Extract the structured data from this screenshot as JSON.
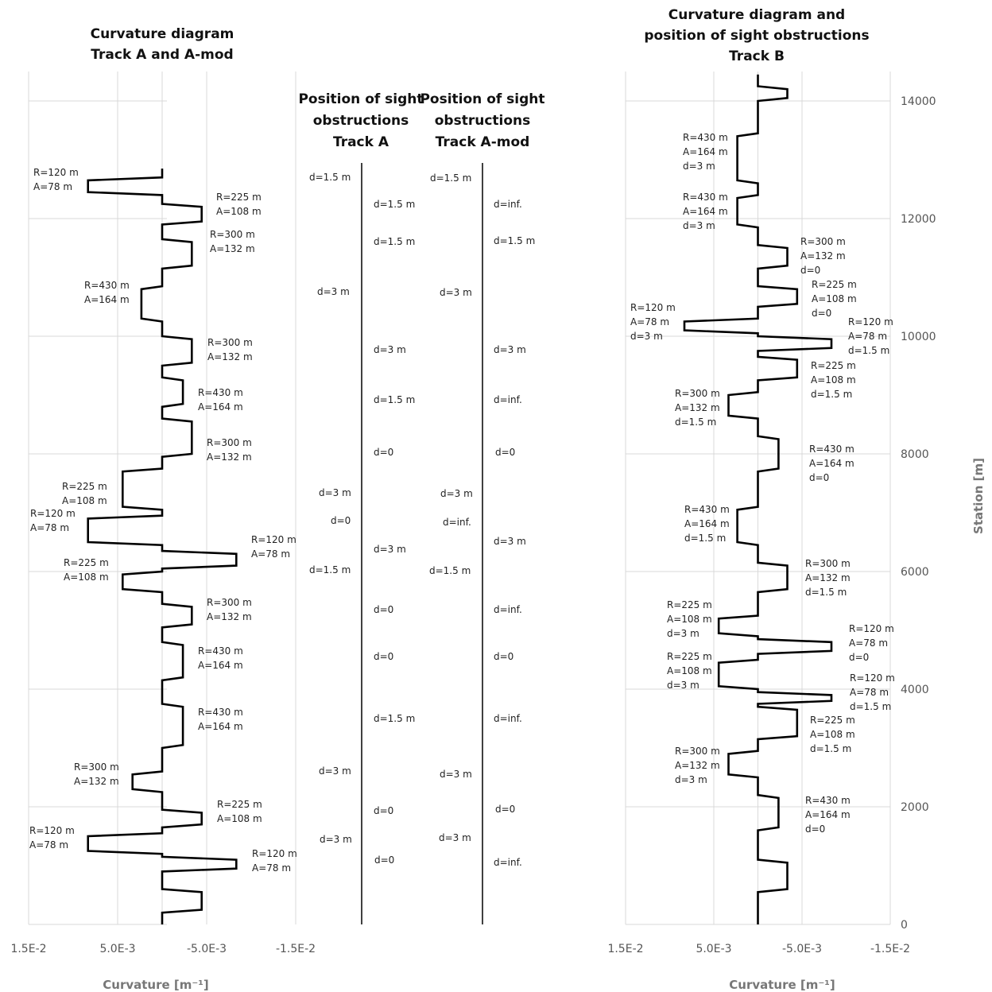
{
  "chart_data": [
    {
      "type": "line",
      "title": [
        "Curvature diagram",
        "Track A and A-mod"
      ],
      "xlabel": "Curvature [m⁻¹]",
      "ylabel": "",
      "x_tick_labels": [
        "1.5E-2",
        "5.0E-3",
        "-5.0E-3",
        "-1.5E-2"
      ],
      "xlim": [
        0.015,
        -0.015
      ],
      "ylim": [
        0,
        14500
      ],
      "grid": true,
      "series": [
        {
          "x": [
            0,
            0,
            0.00833,
            0.00833,
            0,
            0,
            -0.00444,
            -0.00444,
            0,
            0,
            -0.00333,
            -0.00333,
            0,
            0,
            0.00233,
            0.00233,
            0,
            0,
            -0.00333,
            -0.00333,
            0,
            0,
            -0.00233,
            -0.00233,
            0,
            0,
            -0.00333,
            -0.00333,
            0,
            0,
            0.00444,
            0.00444,
            0,
            0,
            0.00833,
            0.00833,
            0,
            0,
            -0.00833,
            -0.00833,
            0,
            0,
            0.00444,
            0.00444,
            0,
            0,
            -0.00333,
            -0.00333,
            0,
            0,
            -0.00233,
            -0.00233,
            0,
            0,
            -0.00233,
            -0.00233,
            0,
            0,
            0.00333,
            0.00333,
            0,
            0,
            -0.00444,
            -0.00444,
            0,
            0,
            0.00833,
            0.00833,
            0,
            0,
            -0.00833,
            -0.00833,
            0,
            0,
            -0.00444,
            -0.00444,
            0,
            0
          ],
          "y": [
            12850,
            12700,
            12650,
            12450,
            12400,
            12250,
            12200,
            11950,
            11900,
            11650,
            11600,
            11200,
            11150,
            10850,
            10800,
            10300,
            10250,
            10000,
            9950,
            9550,
            9500,
            9300,
            9250,
            8850,
            8800,
            8600,
            8550,
            8000,
            7950,
            7750,
            7700,
            7100,
            7050,
            6950,
            6900,
            6500,
            6450,
            6350,
            6300,
            6100,
            6050,
            6000,
            5950,
            5700,
            5650,
            5450,
            5400,
            5100,
            5050,
            4800,
            4750,
            4200,
            4150,
            3750,
            3700,
            3050,
            3000,
            2600,
            2550,
            2300,
            2250,
            1950,
            1900,
            1700,
            1650,
            1550,
            1500,
            1250,
            1200,
            1150,
            1100,
            950,
            900,
            600,
            550,
            250,
            200,
            0
          ]
        }
      ],
      "annotations": [
        "R=120 m",
        "A=78 m",
        "R=225 m",
        "A=108 m",
        "R=300 m",
        "A=132 m",
        "R=430 m",
        "A=164 m",
        "R=300 m",
        "A=132 m",
        "R=430 m",
        "A=164 m",
        "R=300 m",
        "A=132 m",
        "R=225 m",
        "A=108 m",
        "R=120 m",
        "A=78 m",
        "R=120 m",
        "A=78 m",
        "R=225 m",
        "A=108 m",
        "R=300 m",
        "A=132 m",
        "R=430 m",
        "A=164 m",
        "R=430 m",
        "A=164 m",
        "R=300 m",
        "A=132 m",
        "R=225 m",
        "A=108 m",
        "R=120 m",
        "A=78 m",
        "R=120 m",
        "A=78 m"
      ]
    },
    {
      "type": "table",
      "title": [
        "Position of sight",
        "obstructions",
        "Track A"
      ],
      "labels": [
        "d=1.5 m",
        "d=1.5 m",
        "d=1.5 m",
        "d=3 m",
        "d=3 m",
        "d=1.5 m",
        "d=0",
        "d=3 m",
        "d=0",
        "d=3 m",
        "d=1.5 m",
        "d=0",
        "d=0",
        "d=1.5 m",
        "d=3 m",
        "d=0",
        "d=3 m",
        "d=0"
      ]
    },
    {
      "type": "table",
      "title": [
        "Position of sight",
        "obstructions",
        "Track A-mod"
      ],
      "labels": [
        "d=1.5 m",
        "d=inf.",
        "d=1.5 m",
        "d=3 m",
        "d=3 m",
        "d=inf.",
        "d=0",
        "d=3 m",
        "d=inf.",
        "d=3 m",
        "d=1.5 m",
        "d=inf.",
        "d=0",
        "d=inf.",
        "d=3 m",
        "d=0",
        "d=3 m",
        "d=inf."
      ]
    },
    {
      "type": "line",
      "title": [
        "Curvature diagram and",
        "position of sight obstructions",
        "Track B"
      ],
      "xlabel": "Curvature [m⁻¹]",
      "ylabel": "Station [m]",
      "x_tick_labels": [
        "1.5E-2",
        "5.0E-3",
        "-5.0E-3",
        "-1.5E-2"
      ],
      "y_tick_labels": [
        "0",
        "2000",
        "4000",
        "6000",
        "8000",
        "10000",
        "12000",
        "14000"
      ],
      "xlim": [
        0.015,
        -0.015
      ],
      "ylim": [
        0,
        14500
      ],
      "grid": true,
      "series": [
        {
          "x": [
            0,
            0,
            -0.00333,
            -0.00333,
            0,
            0,
            0.00233,
            0.00233,
            0,
            0,
            0.00233,
            0.00233,
            0,
            0,
            -0.00333,
            -0.00333,
            0,
            0,
            -0.00444,
            -0.00444,
            0,
            0,
            0.00833,
            0.00833,
            0,
            0,
            -0.00833,
            -0.00833,
            0,
            0,
            -0.00444,
            -0.00444,
            0,
            0,
            0.00333,
            0.00333,
            0,
            0,
            -0.00233,
            -0.00233,
            0,
            0,
            0.00233,
            0.00233,
            0,
            0,
            -0.00333,
            -0.00333,
            0,
            0,
            0.00444,
            0.00444,
            0,
            0,
            -0.00833,
            -0.00833,
            0,
            0,
            0.00444,
            0.00444,
            0,
            0,
            -0.00833,
            -0.00833,
            0,
            0,
            -0.00444,
            -0.00444,
            0,
            0,
            0.00333,
            0.00333,
            0,
            0,
            -0.00233,
            -0.00233,
            0,
            0,
            -0.00333,
            -0.00333,
            0,
            0
          ],
          "y": [
            14450,
            14250,
            14200,
            14050,
            14000,
            13450,
            13400,
            12650,
            12600,
            12400,
            12350,
            11900,
            11850,
            11550,
            11500,
            11200,
            11150,
            10850,
            10800,
            10550,
            10500,
            10300,
            10250,
            10100,
            10050,
            10000,
            9950,
            9800,
            9750,
            9650,
            9600,
            9300,
            9250,
            9050,
            9000,
            8650,
            8600,
            8300,
            8250,
            7750,
            7700,
            7100,
            7050,
            6500,
            6450,
            6150,
            6100,
            5700,
            5650,
            5250,
            5200,
            4950,
            4900,
            4850,
            4800,
            4650,
            4600,
            4500,
            4450,
            4050,
            4000,
            3950,
            3900,
            3800,
            3750,
            3700,
            3650,
            3200,
            3150,
            2950,
            2900,
            2550,
            2500,
            2200,
            2150,
            1650,
            1600,
            1100,
            1050,
            600,
            550,
            0
          ]
        }
      ],
      "annotations": [
        "R=430 m",
        "A=164 m",
        "d=3 m",
        "R=430 m",
        "A=164 m",
        "d=3 m",
        "R=300 m",
        "A=132 m",
        "d=0",
        "R=225 m",
        "A=108 m",
        "d=0",
        "R=120 m",
        "A=78 m",
        "d=3 m",
        "R=120 m",
        "A=78 m",
        "d=1.5 m",
        "R=225 m",
        "A=108 m",
        "d=1.5 m",
        "R=300 m",
        "A=132 m",
        "d=1.5 m",
        "R=430 m",
        "A=164 m",
        "d=0",
        "R=430 m",
        "A=164 m",
        "d=1.5 m",
        "R=300 m",
        "A=132 m",
        "d=1.5 m",
        "R=225 m",
        "A=108 m",
        "d=3 m",
        "R=120 m",
        "A=78 m",
        "d=0",
        "R=225 m",
        "A=108 m",
        "d=3 m",
        "R=120 m",
        "A=78 m",
        "d=1.5 m",
        "R=225 m",
        "A=108 m",
        "d=1.5 m",
        "R=300 m",
        "A=132 m",
        "d=3 m",
        "R=430 m",
        "A=164 m",
        "d=0"
      ]
    }
  ]
}
